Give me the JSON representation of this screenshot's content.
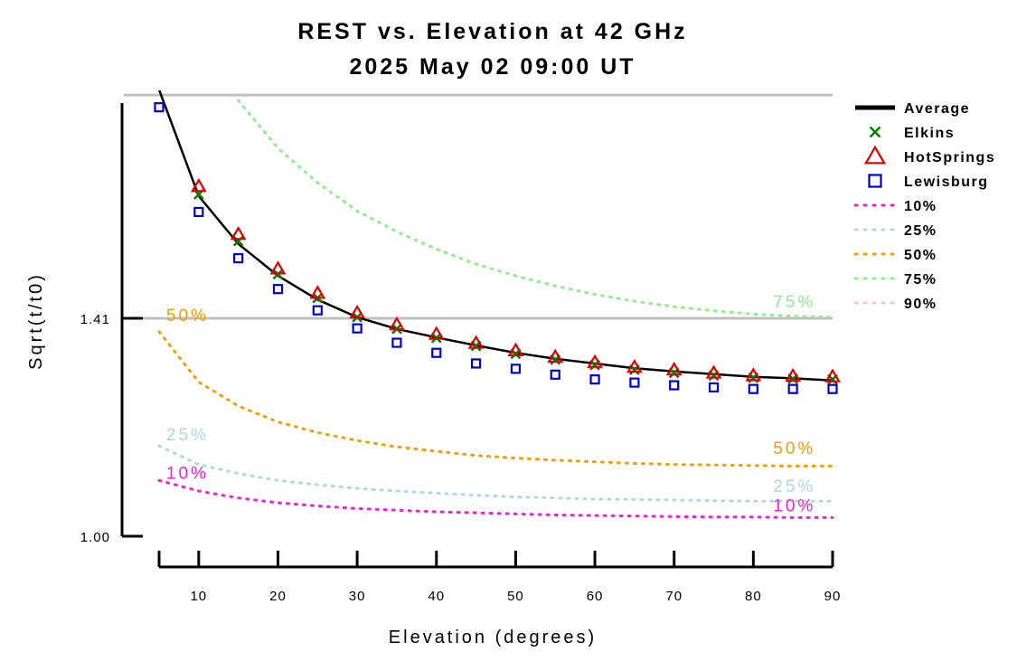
{
  "chart_data": {
    "type": "scatter",
    "title": "REST vs. Elevation at 42 GHz",
    "subtitle": "2025 May 02 09:00 UT",
    "xlabel": "Elevation (degrees)",
    "ylabel": "Sqrt(t/t0)",
    "xlim": [
      4,
      91
    ],
    "ylim": [
      0.97,
      1.84
    ],
    "x_ticks": [
      10,
      20,
      30,
      40,
      50,
      60,
      70,
      80,
      90
    ],
    "x_tick_labels": [
      "10",
      "20",
      "30",
      "40",
      "50",
      "60",
      "70",
      "80",
      "90"
    ],
    "y_ticks": [
      1.0,
      1.41
    ],
    "y_tick_labels": [
      "1.00",
      "1.41"
    ],
    "reference_lines": [
      1.41,
      1.83
    ],
    "grid": false,
    "legend_position": "right",
    "x": [
      5,
      10,
      15,
      20,
      25,
      30,
      35,
      40,
      45,
      50,
      55,
      60,
      65,
      70,
      75,
      80,
      85,
      90
    ],
    "series": [
      {
        "name": "Average",
        "style": "line",
        "color": "#000000",
        "values": [
          1.84,
          1.64,
          1.55,
          1.49,
          1.445,
          1.412,
          1.39,
          1.374,
          1.359,
          1.345,
          1.334,
          1.325,
          1.316,
          1.31,
          1.305,
          1.3,
          1.297,
          1.293
        ]
      },
      {
        "name": "Elkins",
        "style": "x-marker",
        "color": "#008000",
        "values": [
          null,
          1.643,
          1.555,
          1.493,
          1.448,
          1.412,
          1.39,
          1.373,
          1.358,
          1.343,
          1.332,
          1.322,
          1.313,
          1.307,
          1.302,
          1.298,
          1.296,
          1.295
        ]
      },
      {
        "name": "HotSprings",
        "style": "triangle-marker",
        "color": "#e00000",
        "values": [
          null,
          1.658,
          1.568,
          1.503,
          1.457,
          1.42,
          1.398,
          1.38,
          1.363,
          1.349,
          1.337,
          1.327,
          1.318,
          1.313,
          1.307,
          1.302,
          1.301,
          1.3
        ]
      },
      {
        "name": "Lewisburg",
        "style": "square-marker",
        "color": "#0000cc",
        "values": [
          1.807,
          1.61,
          1.523,
          1.465,
          1.425,
          1.391,
          1.364,
          1.345,
          1.325,
          1.315,
          1.304,
          1.295,
          1.289,
          1.284,
          1.28,
          1.277,
          1.277,
          1.277
        ]
      },
      {
        "name": "10%",
        "style": "dotted",
        "color": "#ee22cc",
        "values": [
          1.105,
          1.085,
          1.072,
          1.063,
          1.057,
          1.052,
          1.049,
          1.046,
          1.044,
          1.042,
          1.04,
          1.039,
          1.038,
          1.037,
          1.036,
          1.036,
          1.035,
          1.035
        ]
      },
      {
        "name": "25%",
        "style": "dotted",
        "color": "#add8e6",
        "values": [
          1.17,
          1.135,
          1.118,
          1.105,
          1.097,
          1.09,
          1.085,
          1.081,
          1.077,
          1.074,
          1.072,
          1.07,
          1.069,
          1.068,
          1.067,
          1.066,
          1.066,
          1.066
        ]
      },
      {
        "name": "50%",
        "style": "dotted",
        "color": "#f0a000",
        "values": [
          1.385,
          1.29,
          1.245,
          1.215,
          1.195,
          1.18,
          1.168,
          1.16,
          1.152,
          1.147,
          1.143,
          1.14,
          1.137,
          1.135,
          1.134,
          1.133,
          1.132,
          1.132
        ]
      },
      {
        "name": "75%",
        "style": "dotted",
        "color": "#90ee90",
        "values": [
          null,
          null,
          1.82,
          1.73,
          1.665,
          1.612,
          1.573,
          1.54,
          1.512,
          1.49,
          1.471,
          1.455,
          1.442,
          1.432,
          1.424,
          1.418,
          1.414,
          1.412
        ]
      },
      {
        "name": "90%",
        "style": "dotted",
        "color": "#ffc0cb",
        "values": [
          null,
          null,
          null,
          null,
          null,
          null,
          null,
          null,
          null,
          null,
          null,
          null,
          null,
          null,
          null,
          null,
          null,
          null
        ]
      }
    ],
    "curve_labels": [
      {
        "text": "50%",
        "color": "#f0a000",
        "x": 5.9,
        "y": 1.405
      },
      {
        "text": "25%",
        "color": "#add8e6",
        "x": 5.9,
        "y": 1.18
      },
      {
        "text": "10%",
        "color": "#ee22cc",
        "x": 5.9,
        "y": 1.108
      },
      {
        "text": "75%",
        "color": "#90ee90",
        "x": 82.5,
        "y": 1.43
      },
      {
        "text": "50%",
        "color": "#f0a000",
        "x": 82.5,
        "y": 1.155
      },
      {
        "text": "25%",
        "color": "#add8e6",
        "x": 82.5,
        "y": 1.083
      },
      {
        "text": "10%",
        "color": "#ee22cc",
        "x": 82.5,
        "y": 1.047
      }
    ],
    "legend": [
      {
        "label": "Average",
        "symbol": "line",
        "color": "#000000"
      },
      {
        "label": "Elkins",
        "symbol": "x",
        "color": "#008000"
      },
      {
        "label": "HotSprings",
        "symbol": "triangle",
        "color": "#e00000"
      },
      {
        "label": "Lewisburg",
        "symbol": "square",
        "color": "#0000cc"
      },
      {
        "label": "10%",
        "symbol": "dotted",
        "color": "#ee22cc"
      },
      {
        "label": "25%",
        "symbol": "dotted",
        "color": "#add8e6"
      },
      {
        "label": "50%",
        "symbol": "dotted",
        "color": "#f0a000"
      },
      {
        "label": "75%",
        "symbol": "dotted",
        "color": "#90ee90"
      },
      {
        "label": "90%",
        "symbol": "dotted",
        "color": "#ffc0cb"
      }
    ]
  }
}
